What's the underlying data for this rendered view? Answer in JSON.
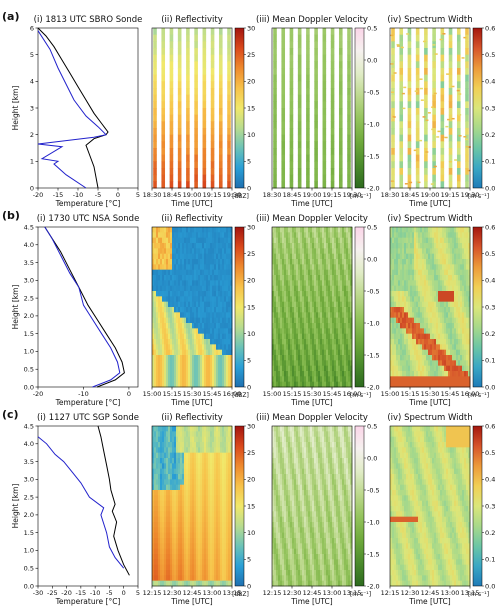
{
  "chart_data": {
    "type": "multi-panel",
    "rows": [
      {
        "label": "(a)",
        "sonde": {
          "title": "(i) 1813 UTC SBRO Sonde",
          "xlabel": "Temperature [°C]",
          "ylabel": "Height [km]",
          "xlim": [
            -20,
            5
          ],
          "ylim": [
            0,
            6
          ],
          "xticks": [
            -20,
            -15,
            -10,
            -5,
            0,
            5
          ],
          "yticks": [
            0,
            1,
            2,
            3,
            4,
            5,
            6
          ],
          "series": [
            {
              "color": "#000000",
              "x": [
                -5,
                -5.5,
                -6,
                -7,
                -8,
                -6,
                -3,
                -2.5,
                -4,
                -6,
                -8,
                -10,
                -12,
                -14,
                -16,
                -18,
                -20
              ],
              "y": [
                0,
                0.4,
                0.8,
                1.2,
                1.6,
                1.85,
                2.0,
                2.1,
                2.4,
                2.8,
                3.3,
                3.8,
                4.3,
                4.8,
                5.3,
                5.7,
                6.0
              ]
            },
            {
              "color": "#2222cc",
              "x": [
                -8,
                -13,
                -16,
                -15,
                -19,
                -14,
                -20,
                -6,
                -3,
                -5,
                -8,
                -11,
                -13,
                -15,
                -17,
                -20
              ],
              "y": [
                0,
                0.5,
                0.9,
                1.0,
                1.1,
                1.55,
                1.65,
                1.9,
                2.0,
                2.3,
                2.7,
                3.3,
                3.9,
                4.5,
                5.2,
                5.9
              ]
            }
          ]
        },
        "panels": [
          {
            "title": "(ii) Reflectivity",
            "cmin": 0,
            "cmax": 30,
            "cticks": [
              0,
              5,
              10,
              15,
              20,
              25,
              30
            ],
            "cunit": "[dBZ]",
            "style": "stripes-refl"
          },
          {
            "title": "(iii) Mean Doppler Velocity",
            "cmin": -2.0,
            "cmax": 0.5,
            "cticks": [
              -2.0,
              -1.5,
              -1.0,
              -0.5,
              0.0,
              0.5
            ],
            "cunit": "[m s⁻¹]",
            "style": "stripes-vel"
          },
          {
            "title": "(iv) Spectrum Width",
            "cmin": 0.0,
            "cmax": 0.6,
            "cticks": [
              0.0,
              0.1,
              0.2,
              0.3,
              0.4,
              0.5,
              0.6
            ],
            "cunit": "[m s⁻¹]",
            "style": "stripes-sw"
          }
        ],
        "time_ticks": [
          "18:30",
          "18:45",
          "19:00",
          "19:15",
          "19:30"
        ],
        "time_label": "Time [UTC]"
      },
      {
        "label": "(b)",
        "sonde": {
          "title": "(i) 1730 UTC NSA Sonde",
          "xlabel": "Temperature [°C]",
          "ylabel": "Height [km]",
          "xlim": [
            -20,
            2
          ],
          "ylim": [
            0,
            4.5
          ],
          "xticks": [
            -20,
            -10,
            0
          ],
          "yticks": [
            0,
            0.5,
            1.0,
            1.5,
            2.0,
            2.5,
            3.0,
            3.5,
            4.0,
            4.5
          ],
          "series": [
            {
              "color": "#000000",
              "x": [
                -7,
                -3,
                -1,
                -1.5,
                -3,
                -5,
                -7,
                -9,
                -11,
                -13,
                -15,
                -17,
                -18.5
              ],
              "y": [
                0,
                0.2,
                0.4,
                0.7,
                1.1,
                1.5,
                1.9,
                2.3,
                2.8,
                3.3,
                3.8,
                4.2,
                4.5
              ]
            },
            {
              "color": "#2222cc",
              "x": [
                -8,
                -4,
                -2,
                -2.5,
                -4,
                -6,
                -8,
                -10,
                -11,
                -13,
                -15,
                -17,
                -18.5
              ],
              "y": [
                0,
                0.2,
                0.4,
                0.7,
                1.1,
                1.5,
                1.9,
                2.3,
                2.8,
                3.2,
                3.7,
                4.2,
                4.5
              ]
            }
          ]
        },
        "panels": [
          {
            "title": "(ii) Reflectivity",
            "cmin": 0,
            "cmax": 30,
            "cticks": [
              0,
              5,
              10,
              15,
              20,
              25,
              30
            ],
            "cunit": "[dBZ]",
            "style": "field-refl-b"
          },
          {
            "title": "(iii) Mean Doppler Velocity",
            "cmin": -2.0,
            "cmax": 0.5,
            "cticks": [
              -2.0,
              -1.5,
              -1.0,
              -0.5,
              0.0,
              0.5
            ],
            "cunit": "[m s⁻¹]",
            "style": "field-vel"
          },
          {
            "title": "(iv) Spectrum Width",
            "cmin": 0.0,
            "cmax": 0.6,
            "cticks": [
              0.0,
              0.1,
              0.2,
              0.3,
              0.4,
              0.5,
              0.6
            ],
            "cunit": "[m s⁻¹]",
            "style": "field-sw-b"
          }
        ],
        "time_ticks": [
          "15:00",
          "15:15",
          "15:30",
          "15:45",
          "16:00"
        ],
        "time_label": "Time [UTC]"
      },
      {
        "label": "(c)",
        "sonde": {
          "title": "(i) 1127 UTC SGP Sonde",
          "xlabel": "Temperature [°C]",
          "ylabel": "Height [km]",
          "xlim": [
            -30,
            5
          ],
          "ylim": [
            0,
            4.5
          ],
          "xticks": [
            -30,
            -25,
            -20,
            -15,
            -10,
            -5,
            0,
            5
          ],
          "yticks": [
            0,
            0.5,
            1.0,
            1.5,
            2.0,
            2.5,
            3.0,
            3.5,
            4.0,
            4.5
          ],
          "series": [
            {
              "color": "#000000",
              "x": [
                2,
                0,
                -2,
                -3.5,
                -2.5,
                -4,
                -3,
                -4.5,
                -5,
                -6,
                -7,
                -8,
                -9
              ],
              "y": [
                0.3,
                0.6,
                1.0,
                1.4,
                1.8,
                2.1,
                2.3,
                2.7,
                3.0,
                3.4,
                3.8,
                4.2,
                4.5
              ]
            },
            {
              "color": "#2222cc",
              "x": [
                0,
                -3,
                -5,
                -6,
                -8,
                -7,
                -12,
                -15,
                -18,
                -21,
                -24,
                -27,
                -30
              ],
              "y": [
                0.5,
                0.8,
                1.1,
                1.5,
                2.0,
                2.2,
                2.5,
                2.9,
                3.2,
                3.5,
                3.7,
                4.0,
                4.2
              ]
            }
          ]
        },
        "panels": [
          {
            "title": "(ii) Reflectivity",
            "cmin": 0,
            "cmax": 30,
            "cticks": [
              0,
              5,
              10,
              15,
              20,
              25,
              30
            ],
            "cunit": "[dBZ]",
            "style": "field-refl-c"
          },
          {
            "title": "(iii) Mean Doppler Velocity",
            "cmin": -2.0,
            "cmax": 0.5,
            "cticks": [
              -2.0,
              -1.5,
              -1.0,
              -0.5,
              0.0,
              0.5
            ],
            "cunit": "[m s⁻¹]",
            "style": "field-vel-c"
          },
          {
            "title": "(iv) Spectrum Width",
            "cmin": 0.0,
            "cmax": 0.6,
            "cticks": [
              0.0,
              0.1,
              0.2,
              0.3,
              0.4,
              0.5,
              0.6
            ],
            "cunit": "[m s⁻¹]",
            "style": "field-sw-c"
          }
        ],
        "time_ticks": [
          "12:15",
          "12:30",
          "12:45",
          "13:00",
          "13:15"
        ],
        "time_label": "Time [UTC]"
      }
    ]
  }
}
